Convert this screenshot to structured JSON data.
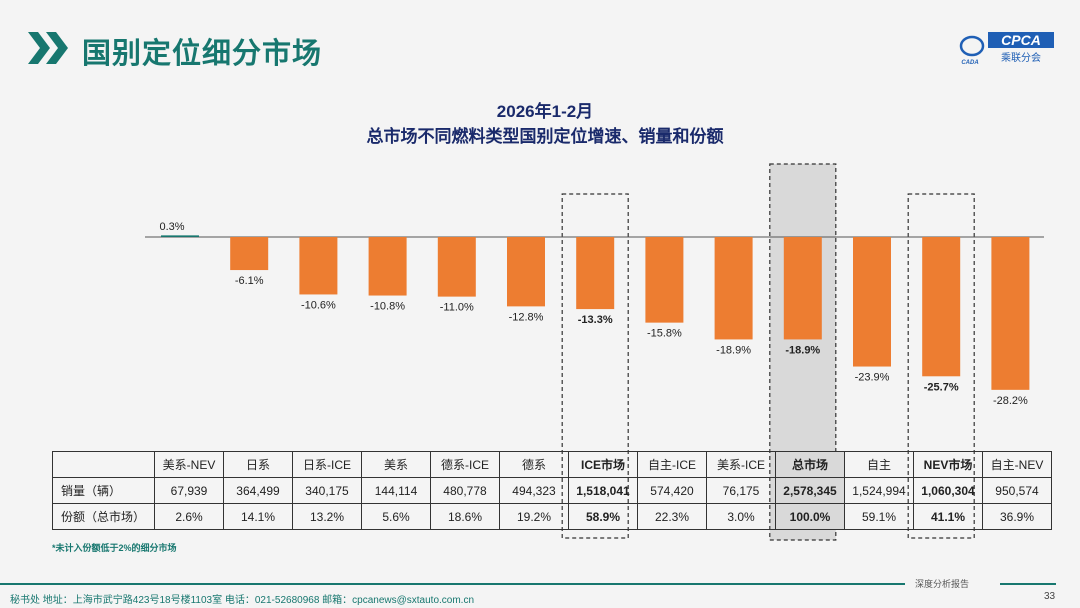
{
  "header": {
    "title": "国别定位细分市场",
    "logo_text": "CPCA",
    "logo_sub": "乘联分会",
    "logo_mark": "CADA"
  },
  "colors": {
    "accent": "#17776f",
    "bar_negative": "#ed7d31",
    "bar_positive": "#17776f",
    "highlight_fill": "#d9d9d9"
  },
  "chart_data": {
    "type": "bar",
    "title": "2026年1-2月",
    "subtitle": "总市场不同燃料类型国别定位增速、销量和份额",
    "categories": [
      "美系-NEV",
      "日系",
      "日系-ICE",
      "美系",
      "德系-ICE",
      "德系",
      "ICE市场",
      "自主-ICE",
      "美系-ICE",
      "总市场",
      "自主",
      "NEV市场",
      "自主-NEV"
    ],
    "values": [
      0.3,
      -6.1,
      -10.6,
      -10.8,
      -11.0,
      -12.8,
      -13.3,
      -15.8,
      -18.9,
      -18.9,
      -23.9,
      -25.7,
      -28.2
    ],
    "labels": [
      "0.3%",
      "-6.1%",
      "-10.6%",
      "-10.8%",
      "-11.0%",
      "-12.8%",
      "-13.3%",
      "-15.8%",
      "-18.9%",
      "-18.9%",
      "-23.9%",
      "-25.7%",
      "-28.2%"
    ],
    "highlighted": [
      "ICE市场",
      "总市场",
      "NEV市场"
    ],
    "shaded": [
      "总市场"
    ],
    "unit": "%",
    "grid": false
  },
  "table": {
    "row_labels": [
      "销量（辆）",
      "份额（总市场）"
    ],
    "sales": [
      "67,939",
      "364,499",
      "340,175",
      "144,114",
      "480,778",
      "494,323",
      "1,518,041",
      "574,420",
      "76,175",
      "2,578,345",
      "1,524,994",
      "1,060,304",
      "950,574"
    ],
    "share": [
      "2.6%",
      "14.1%",
      "13.2%",
      "5.6%",
      "18.6%",
      "19.2%",
      "58.9%",
      "22.3%",
      "3.0%",
      "100.0%",
      "59.1%",
      "41.1%",
      "36.9%"
    ]
  },
  "note": "*未计入份额低于2%的细分市场",
  "footer": {
    "address": "秘书处   地址：上海市武宁路423号18号楼1103室  电话：021-52680968   邮箱：cpcanews@sxtauto.com.cn",
    "report": "深度分析报告",
    "page": "33"
  }
}
